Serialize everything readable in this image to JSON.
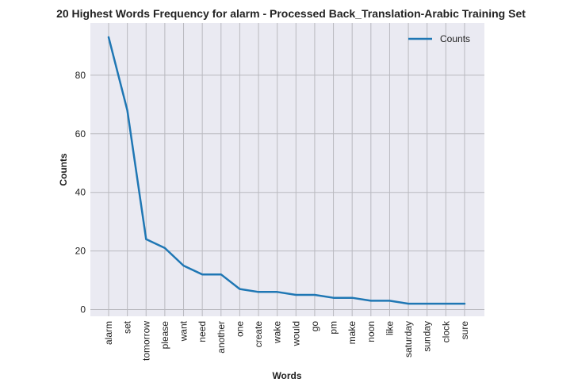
{
  "chart_data": {
    "type": "line",
    "title": "20 Highest Words Frequency for alarm - Processed Back_Translation-Arabic Training Set",
    "xlabel": "Words",
    "ylabel": "Counts",
    "categories": [
      "alarm",
      "set",
      "tomorrow",
      "please",
      "want",
      "need",
      "another",
      "one",
      "create",
      "wake",
      "would",
      "go",
      "pm",
      "make",
      "noon",
      "like",
      "saturday",
      "sunday",
      "clock",
      "sure"
    ],
    "series": [
      {
        "name": "Counts",
        "color": "#1f77b4",
        "values": [
          93,
          68,
          24,
          21,
          15,
          12,
          12,
          7,
          6,
          6,
          5,
          5,
          4,
          4,
          3,
          3,
          2,
          2,
          2,
          2
        ]
      }
    ],
    "yticks": [
      0,
      20,
      40,
      60,
      80
    ],
    "ylim": [
      -2.5,
      97.5
    ],
    "grid": true,
    "legend_position": "top-right",
    "background_color": "#eaeaf2",
    "grid_color": "#b9b9bf"
  }
}
